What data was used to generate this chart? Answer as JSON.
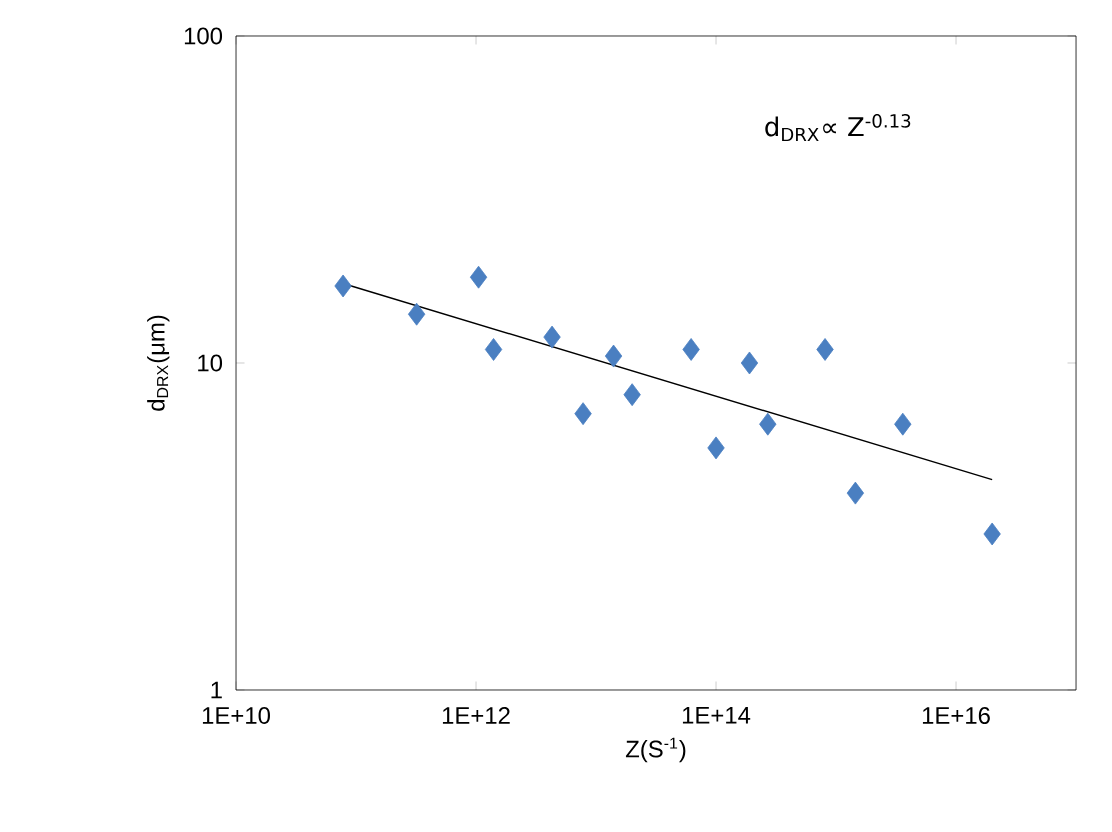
{
  "chart_data": {
    "type": "scatter",
    "xlabel": "Z(S$^{-1}$)",
    "ylabel": "d$_{DRX}$(μm)",
    "log": "xy",
    "xlim": [
      10000000000.0,
      1e+17
    ],
    "ylim": [
      1,
      100
    ],
    "xticks": [
      {
        "value": 10000000000.0,
        "label": "1E+10"
      },
      {
        "value": 1000000000000.0,
        "label": "1E+12"
      },
      {
        "value": 100000000000000.0,
        "label": "1E+14"
      },
      {
        "value": 1e+16,
        "label": "1E+16"
      }
    ],
    "yticks": [
      1,
      10,
      100
    ],
    "grid": false,
    "annotations": [
      "d$_{DRX}$∝ Z$^{-0.13}$"
    ],
    "series": [
      {
        "marker": "diamond",
        "color": "#4a7fc1",
        "x": [
          78000000000.0,
          320000000000.0,
          1050000000000.0,
          1400000000000.0,
          4300000000000.0,
          7800000000000.0,
          14000000000000.0,
          20000000000000.0,
          62000000000000.0,
          100000000000000.0,
          190000000000000.0,
          270000000000000.0,
          810000000000000.0,
          1450000000000000.0,
          3600000000000000.0,
          2e+16
        ],
        "values": [
          17.2,
          14.1,
          18.3,
          11,
          12,
          7,
          10.5,
          8,
          11,
          5.5,
          10,
          6.5,
          11,
          4,
          6.5,
          3
        ]
      },
      {
        "type": "line",
        "color": "#000000",
        "x": [
          78000000000.0,
          2e+16
        ],
        "values": [
          17.5,
          4.4
        ]
      }
    ]
  }
}
